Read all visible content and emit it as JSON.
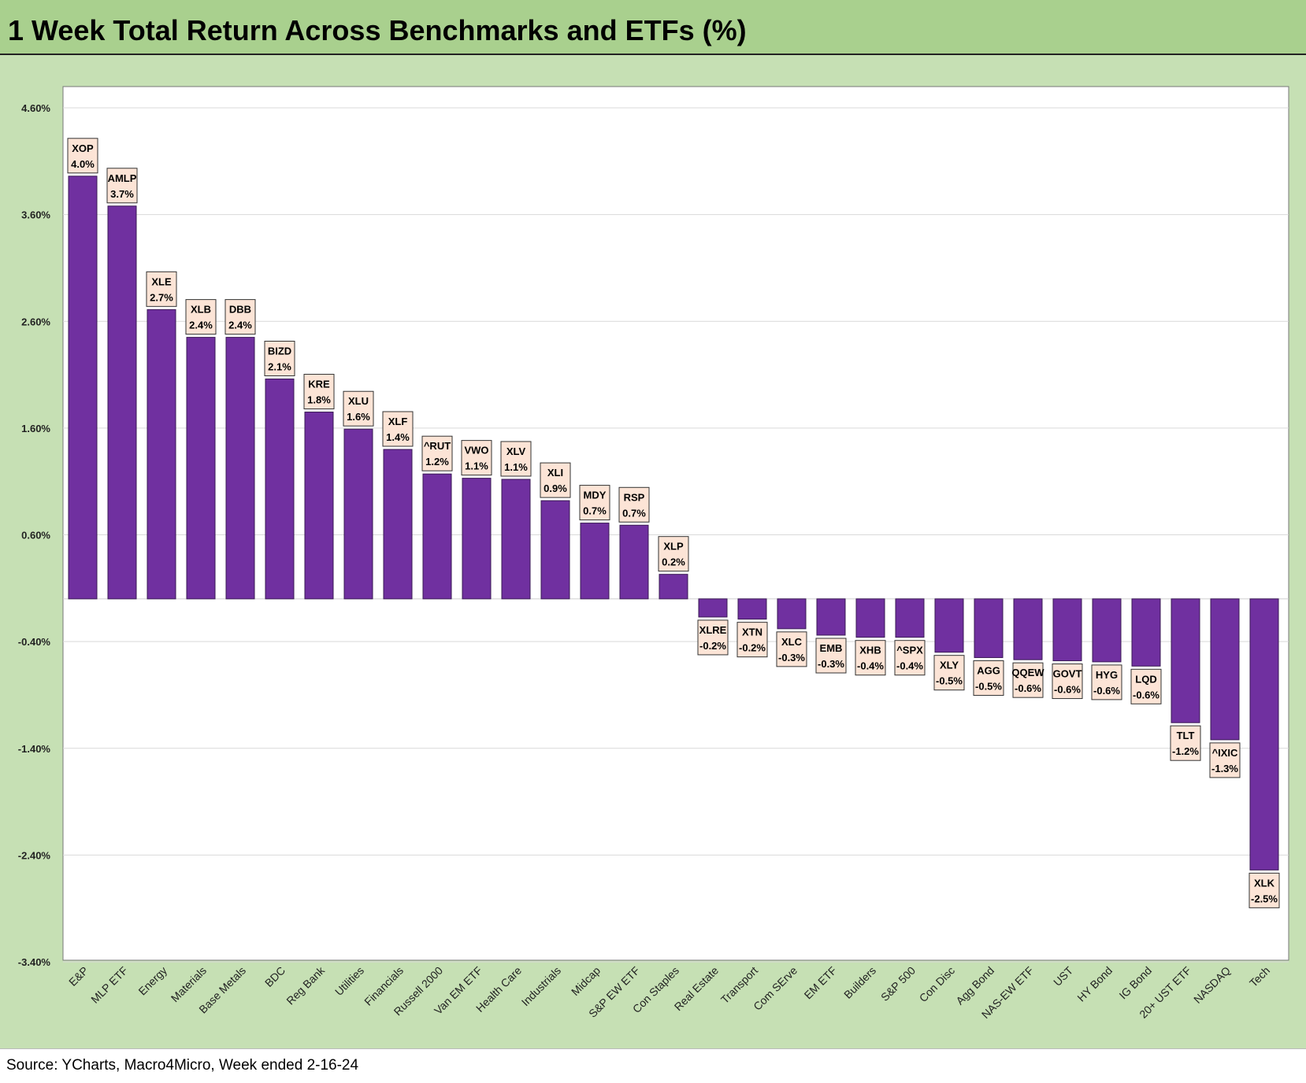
{
  "title": "1 Week Total Return Across Benchmarks and ETFs (%)",
  "source": "Source: YCharts, Macro4Micro, Week ended 2-16-24",
  "colors": {
    "bar": "#7030a0",
    "label_bg": "#fce4d6",
    "header_bg": "#a9d08e",
    "chart_bg": "#c6e0b4"
  },
  "chart_data": {
    "type": "bar",
    "title": "1 Week Total Return Across Benchmarks and ETFs (%)",
    "xlabel": "",
    "ylabel": "",
    "ylim": [
      -3.4,
      4.6
    ],
    "yticks": [
      4.6,
      3.6,
      2.6,
      1.6,
      0.6,
      -0.4,
      -1.4,
      -2.4,
      -3.4
    ],
    "ytick_labels": [
      "4.60%",
      "3.60%",
      "2.60%",
      "1.60%",
      "0.60%",
      "-0.40%",
      "-1.40%",
      "-2.40%",
      "-3.40%"
    ],
    "grid": true,
    "legend": "none",
    "categories": [
      "E&P",
      "MLP ETF",
      "Energy",
      "Materials",
      "Base Metals",
      "BDC",
      "Reg Bank",
      "Utilities",
      "Financials",
      "Russell 2000",
      "Van EM ETF",
      "Health Care",
      "Industrials",
      "Midcap",
      "S&P EW ETF",
      "Con Staples",
      "Real Estate",
      "Transport",
      "Com SErve",
      "EM ETF",
      "Builders",
      "S&P 500",
      "Con Disc",
      "Agg Bond",
      "NAS-EW ETF",
      "UST",
      "HY Bond",
      "IG Bond",
      "20+ UST ETF",
      "NASDAQ",
      "Tech"
    ],
    "tickers": [
      "XOP",
      "AMLP",
      "XLE",
      "XLB",
      "DBB",
      "BIZD",
      "KRE",
      "XLU",
      "XLF",
      "^RUT",
      "VWO",
      "XLV",
      "XLI",
      "MDY",
      "RSP",
      "XLP",
      "XLRE",
      "XTN",
      "XLC",
      "EMB",
      "XHB",
      "^SPX",
      "XLY",
      "AGG",
      "QQEW",
      "GOVT",
      "HYG",
      "LQD",
      "TLT",
      "^IXIC",
      "XLK"
    ],
    "data_labels": [
      "4.0%",
      "3.7%",
      "2.7%",
      "2.4%",
      "2.4%",
      "2.1%",
      "1.8%",
      "1.6%",
      "1.4%",
      "1.2%",
      "1.1%",
      "1.1%",
      "0.9%",
      "0.7%",
      "0.7%",
      "0.2%",
      "-0.2%",
      "-0.2%",
      "-0.3%",
      "-0.3%",
      "-0.4%",
      "-0.4%",
      "-0.5%",
      "-0.5%",
      "-0.6%",
      "-0.6%",
      "-0.6%",
      "-0.6%",
      "-1.2%",
      "-1.3%",
      "-2.5%"
    ],
    "values": [
      3.96,
      3.68,
      2.71,
      2.45,
      2.45,
      2.06,
      1.75,
      1.59,
      1.4,
      1.17,
      1.13,
      1.12,
      0.92,
      0.71,
      0.69,
      0.23,
      -0.17,
      -0.19,
      -0.28,
      -0.34,
      -0.36,
      -0.36,
      -0.5,
      -0.55,
      -0.57,
      -0.58,
      -0.59,
      -0.63,
      -1.16,
      -1.32,
      -2.54
    ]
  }
}
